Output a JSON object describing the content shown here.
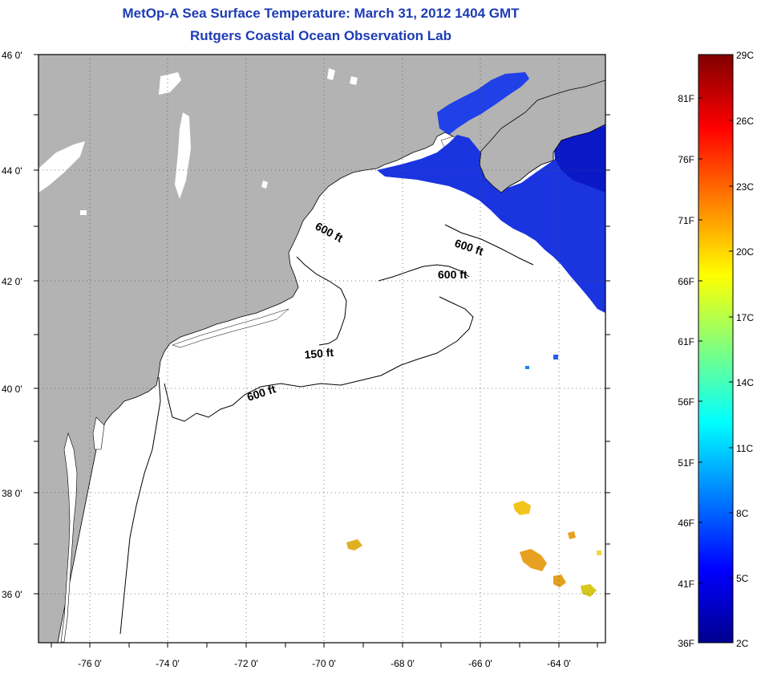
{
  "title": {
    "line1": "MetOp-A Sea Surface Temperature:  March 31, 2012 1404 GMT",
    "line2": "Rutgers Coastal Ocean Observation Lab"
  },
  "map": {
    "lat_labels": [
      "46 0'",
      "44 0'",
      "42 0'",
      "40 0'",
      "38 0'",
      "36 0'"
    ],
    "lon_labels": [
      "-76 0'",
      "-74 0'",
      "-72 0'",
      "-70 0'",
      "-68 0'",
      "-66 0'",
      "-64 0'"
    ],
    "contour_labels": [
      "600 ft",
      "600 ft",
      "600 ft",
      "150 ft",
      "600 ft"
    ],
    "land_color": "#b3b3b3",
    "ocean_color": "#ffffff"
  },
  "colorbar": {
    "celsius_labels": [
      "29C",
      "26C",
      "23C",
      "20C",
      "17C",
      "14C",
      "11C",
      "8C",
      "5C",
      "2C"
    ],
    "fahrenheit_labels": [
      "81F",
      "76F",
      "71F",
      "66F",
      "61F",
      "56F",
      "51F",
      "46F",
      "41F",
      "36F"
    ],
    "colormap": "jet",
    "range_c": [
      2,
      29
    ],
    "range_f": [
      36,
      84
    ]
  }
}
